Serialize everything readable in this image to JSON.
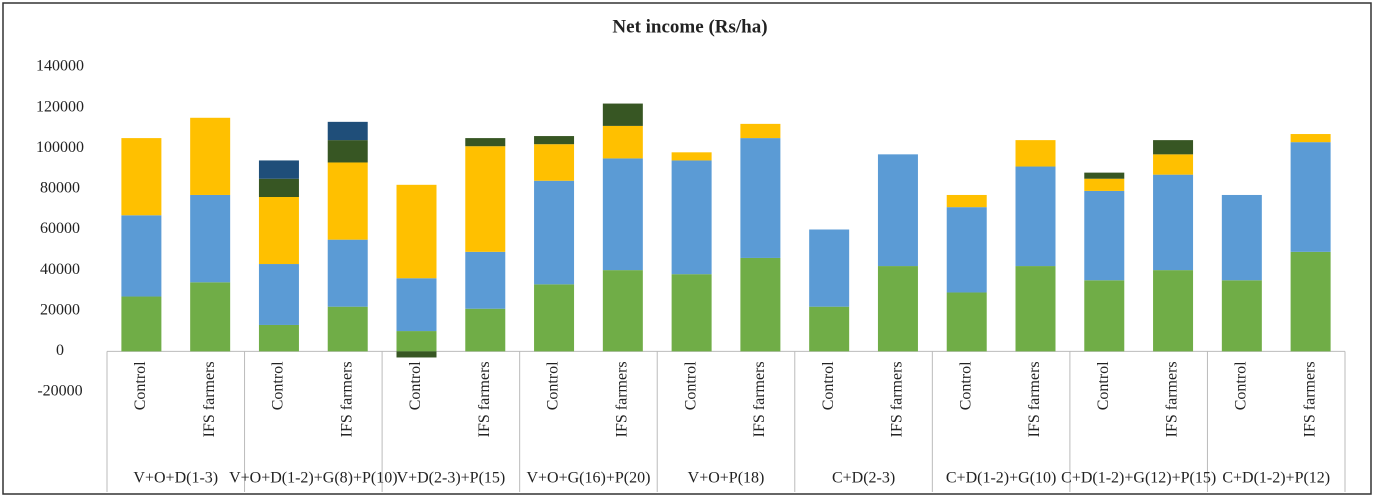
{
  "chart_data": {
    "type": "bar",
    "stacked": true,
    "title": "Net income (Rs/ha)",
    "categories": [
      "Control",
      "IFS farmers",
      "Control",
      "IFS farmers",
      "Control",
      "IFS farmers",
      "Control",
      "IFS farmers",
      "Control",
      "IFS farmers",
      "Control",
      "IFS farmers",
      "Control",
      "IFS farmers",
      "Control",
      "IFS farmers",
      "Control",
      "IFS farmers"
    ],
    "groups": [
      "V+O+D(1-3)",
      "V+O+D(1-2)+G(8)+P(10)",
      "V+D(2-3)+P(15)",
      "V+O+G(16)+P(20)",
      "V+O+P(18)",
      "C+D(2-3)",
      "C+D(1-2)+G(10)",
      "C+D(1-2)+G(12)+P(15)",
      "C+D(1-2)+P(12)"
    ],
    "series": [
      {
        "color": "#70ad47",
        "values": [
          27000,
          34000,
          13000,
          22000,
          10000,
          21000,
          33000,
          40000,
          38000,
          46000,
          22000,
          42000,
          29000,
          42000,
          35000,
          40000,
          35000,
          49000
        ]
      },
      {
        "color": "#5b9bd5",
        "values": [
          40000,
          43000,
          30000,
          33000,
          26000,
          28000,
          51000,
          55000,
          56000,
          59000,
          38000,
          55000,
          42000,
          49000,
          44000,
          47000,
          42000,
          54000
        ]
      },
      {
        "color": "#ffc000",
        "values": [
          38000,
          38000,
          33000,
          38000,
          46000,
          52000,
          18000,
          16000,
          4000,
          7000,
          null,
          null,
          6000,
          13000,
          6000,
          10000,
          null,
          4000
        ]
      },
      {
        "color": "#375623",
        "values": [
          null,
          null,
          9000,
          11000,
          -3000,
          4000,
          4000,
          11000,
          null,
          null,
          null,
          null,
          null,
          null,
          3000,
          7000,
          null,
          null
        ]
      },
      {
        "color": "#1f4e79",
        "values": [
          null,
          null,
          9000,
          9000,
          null,
          null,
          null,
          null,
          null,
          null,
          null,
          null,
          null,
          null,
          null,
          null,
          null,
          null
        ]
      }
    ],
    "ylim": [
      -20000,
      140000
    ],
    "yticks": [
      -20000,
      0,
      20000,
      40000,
      60000,
      80000,
      100000,
      120000,
      140000
    ]
  }
}
